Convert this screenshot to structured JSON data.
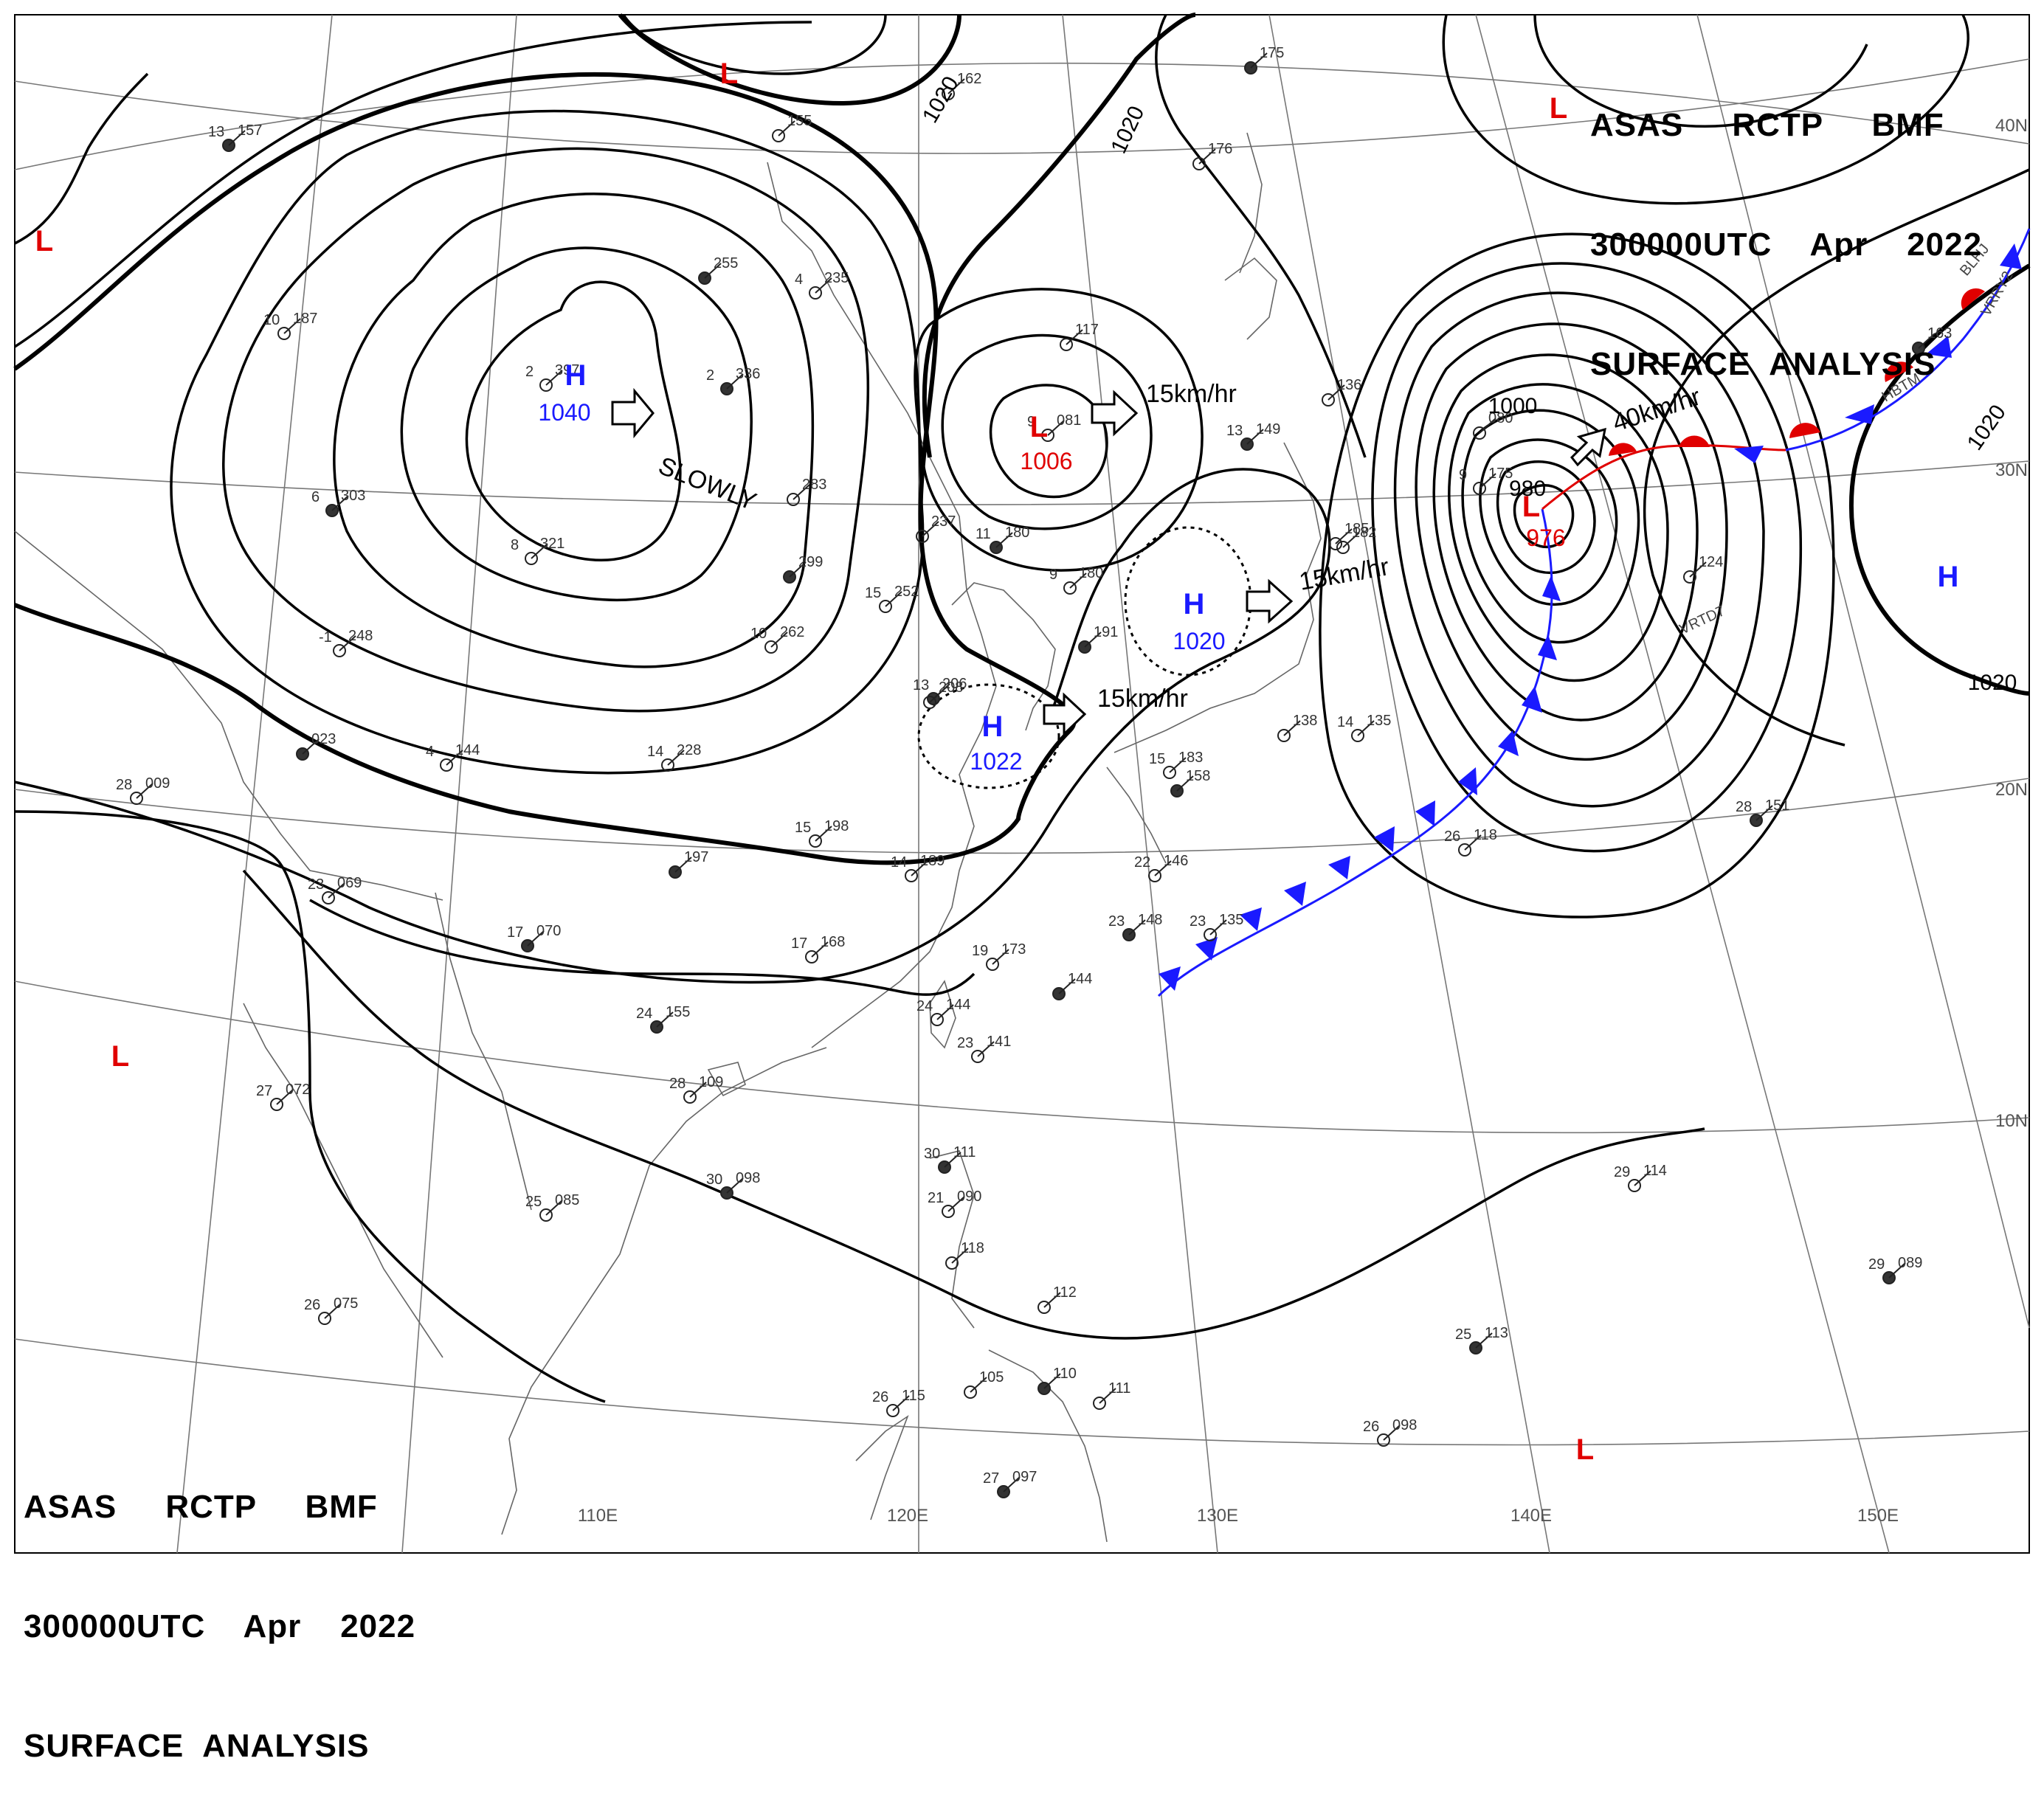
{
  "header": {
    "line1": "ASAS     RCTP     BMF",
    "line2": "300000UTC    Apr    2022",
    "line3": "SURFACE  ANALYSIS"
  },
  "pressure_centers": [
    {
      "type": "H",
      "value": "1040",
      "color": "#1a1aff"
    },
    {
      "type": "L",
      "value": "1006",
      "color": "#e00000"
    },
    {
      "type": "H",
      "value": "1020",
      "color": "#1a1aff"
    },
    {
      "type": "H",
      "value": "1022",
      "color": "#1a1aff"
    },
    {
      "type": "L",
      "value": "976",
      "color": "#e00000"
    },
    {
      "type": "H",
      "value": "",
      "color": "#1a1aff"
    }
  ],
  "lows_unlabeled": [
    "L",
    "L",
    "L",
    "L",
    "L"
  ],
  "isobar_labels": [
    "1020",
    "1020",
    "1020",
    "1020",
    "1000",
    "980"
  ],
  "motion_labels": [
    "SLOWLY",
    "15km/hr",
    "15km/hr",
    "15km/hr",
    "40km/hr"
  ],
  "lat_labels": [
    "40N",
    "30N",
    "20N",
    "10N"
  ],
  "lon_labels": [
    "110E",
    "120E",
    "130E",
    "140E",
    "150E"
  ],
  "station_codes": [
    "BLHJ",
    "VRRY2",
    "HBTM",
    "VRTD7"
  ],
  "station_plots": [
    {
      "t": "13",
      "p": "157"
    },
    {
      "t": "",
      "p": "155"
    },
    {
      "t": "",
      "p": "162"
    },
    {
      "t": "",
      "p": "175"
    },
    {
      "t": "",
      "p": "176"
    },
    {
      "t": "10",
      "p": "187"
    },
    {
      "t": "",
      "p": "255"
    },
    {
      "t": "4",
      "p": "235"
    },
    {
      "t": "2",
      "p": "397"
    },
    {
      "t": "2",
      "p": "336"
    },
    {
      "t": "",
      "p": "117"
    },
    {
      "t": "9",
      "p": "081"
    },
    {
      "t": "13",
      "p": "149"
    },
    {
      "t": "",
      "p": "080"
    },
    {
      "t": "9",
      "p": "175"
    },
    {
      "t": "6",
      "p": "303"
    },
    {
      "t": "8",
      "p": "321"
    },
    {
      "t": "",
      "p": "283"
    },
    {
      "t": "",
      "p": "299"
    },
    {
      "t": "15",
      "p": "252"
    },
    {
      "t": "",
      "p": "237"
    },
    {
      "t": "11",
      "p": "180"
    },
    {
      "t": "9",
      "p": "180"
    },
    {
      "t": "",
      "p": "185"
    },
    {
      "t": "",
      "p": "191"
    },
    {
      "t": "-1",
      "p": "248"
    },
    {
      "t": "10",
      "p": "262"
    },
    {
      "t": "13",
      "p": "206"
    },
    {
      "t": "4",
      "p": "144"
    },
    {
      "t": "14",
      "p": "228"
    },
    {
      "t": "",
      "p": "023"
    },
    {
      "t": "28",
      "p": "009"
    },
    {
      "t": "15",
      "p": "198"
    },
    {
      "t": "",
      "p": "197"
    },
    {
      "t": "14",
      "p": "189"
    },
    {
      "t": "15",
      "p": "183"
    },
    {
      "t": "",
      "p": "158"
    },
    {
      "t": "",
      "p": "138"
    },
    {
      "t": "14",
      "p": "135"
    },
    {
      "t": "28",
      "p": "151"
    },
    {
      "t": "26",
      "p": "118"
    },
    {
      "t": "23",
      "p": "069"
    },
    {
      "t": "17",
      "p": "070"
    },
    {
      "t": "17",
      "p": "168"
    },
    {
      "t": "22",
      "p": "146"
    },
    {
      "t": "23",
      "p": "148"
    },
    {
      "t": "23",
      "p": "135"
    },
    {
      "t": "19",
      "p": "173"
    },
    {
      "t": "",
      "p": "144"
    },
    {
      "t": "24",
      "p": "144"
    },
    {
      "t": "23",
      "p": "141"
    },
    {
      "t": "24",
      "p": "155"
    },
    {
      "t": "27",
      "p": "072"
    },
    {
      "t": "28",
      "p": "109"
    },
    {
      "t": "30",
      "p": "111"
    },
    {
      "t": "21",
      "p": "090"
    },
    {
      "t": "",
      "p": "118"
    },
    {
      "t": "30",
      "p": "098"
    },
    {
      "t": "25",
      "p": "085"
    },
    {
      "t": "29",
      "p": "114"
    },
    {
      "t": "29",
      "p": "089"
    },
    {
      "t": "26",
      "p": "075"
    },
    {
      "t": "",
      "p": "112"
    },
    {
      "t": "25",
      "p": "113"
    },
    {
      "t": "26",
      "p": "115"
    },
    {
      "t": "",
      "p": "105"
    },
    {
      "t": "",
      "p": "110"
    },
    {
      "t": "",
      "p": "111"
    },
    {
      "t": "26",
      "p": "098"
    },
    {
      "t": "27",
      "p": "097"
    },
    {
      "t": "",
      "p": "124"
    },
    {
      "t": "",
      "p": "182"
    },
    {
      "t": "",
      "p": "163"
    },
    {
      "t": "",
      "p": "136"
    },
    {
      "t": "",
      "p": "208"
    }
  ]
}
